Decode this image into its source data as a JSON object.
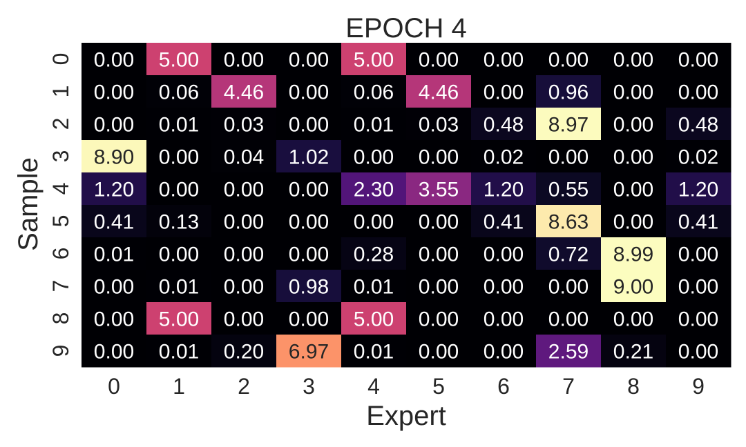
{
  "chart_data": {
    "type": "heatmap",
    "title": "EPOCH 4",
    "xlabel": "Expert",
    "ylabel": "Sample",
    "x_ticks": [
      "0",
      "1",
      "2",
      "3",
      "4",
      "5",
      "6",
      "7",
      "8",
      "9"
    ],
    "y_ticks": [
      "0",
      "1",
      "2",
      "3",
      "4",
      "5",
      "6",
      "7",
      "8",
      "9"
    ],
    "value_format": "2 decimals",
    "colormap": "magma",
    "vmin": 0,
    "vmax": 9,
    "grid": false,
    "legend": "none",
    "values": [
      [
        0.0,
        5.0,
        0.0,
        0.0,
        5.0,
        0.0,
        0.0,
        0.0,
        0.0,
        0.0
      ],
      [
        0.0,
        0.06,
        4.46,
        0.0,
        0.06,
        4.46,
        0.0,
        0.96,
        0.0,
        0.0
      ],
      [
        0.0,
        0.01,
        0.03,
        0.0,
        0.01,
        0.03,
        0.48,
        8.97,
        0.0,
        0.48
      ],
      [
        8.9,
        0.0,
        0.04,
        1.02,
        0.0,
        0.0,
        0.02,
        0.0,
        0.0,
        0.02
      ],
      [
        1.2,
        0.0,
        0.0,
        0.0,
        2.3,
        3.55,
        1.2,
        0.55,
        0.0,
        1.2
      ],
      [
        0.41,
        0.13,
        0.0,
        0.0,
        0.0,
        0.0,
        0.41,
        8.63,
        0.0,
        0.41
      ],
      [
        0.01,
        0.0,
        0.0,
        0.0,
        0.28,
        0.0,
        0.0,
        0.72,
        8.99,
        0.0
      ],
      [
        0.0,
        0.01,
        0.0,
        0.98,
        0.01,
        0.0,
        0.0,
        0.0,
        9.0,
        0.0
      ],
      [
        0.0,
        5.0,
        0.0,
        0.0,
        5.0,
        0.0,
        0.0,
        0.0,
        0.0,
        0.0
      ],
      [
        0.0,
        0.01,
        0.2,
        6.97,
        0.01,
        0.0,
        0.0,
        2.59,
        0.21,
        0.0
      ]
    ]
  }
}
